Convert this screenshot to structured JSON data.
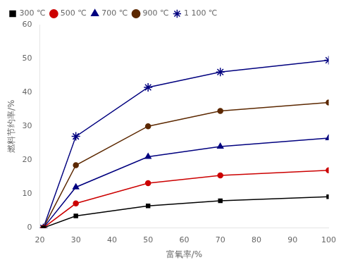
{
  "chart_data": {
    "type": "line",
    "xlabel": "富氧率/%",
    "ylabel": "燃料节约率/%",
    "x": [
      21,
      30,
      50,
      70,
      100
    ],
    "series": [
      {
        "name": "300 ℃",
        "color": "#000000",
        "marker": "square",
        "values": [
          0,
          3.5,
          6.5,
          8.0,
          9.2
        ]
      },
      {
        "name": "500 ℃",
        "color": "#cc0000",
        "marker": "circle",
        "values": [
          0,
          7.2,
          13.2,
          15.5,
          17.0
        ]
      },
      {
        "name": "700 ℃",
        "color": "#00007F",
        "marker": "triangle",
        "values": [
          0,
          12.0,
          21.0,
          24.0,
          26.5
        ]
      },
      {
        "name": "900 ℃",
        "color": "#5C2800",
        "marker": "circle",
        "values": [
          0,
          18.5,
          30.0,
          34.5,
          37.0
        ]
      },
      {
        "name": "1 100 ℃",
        "color": "#00007F",
        "marker": "star",
        "values": [
          0,
          27.0,
          41.5,
          46.0,
          49.5
        ]
      }
    ],
    "xlim": [
      20,
      100
    ],
    "ylim": [
      0,
      60
    ],
    "xticks": [
      20,
      30,
      40,
      50,
      60,
      70,
      80,
      90,
      100
    ],
    "yticks": [
      0,
      10,
      20,
      30,
      40,
      50,
      60
    ],
    "grid": false,
    "legend": "upper left"
  }
}
